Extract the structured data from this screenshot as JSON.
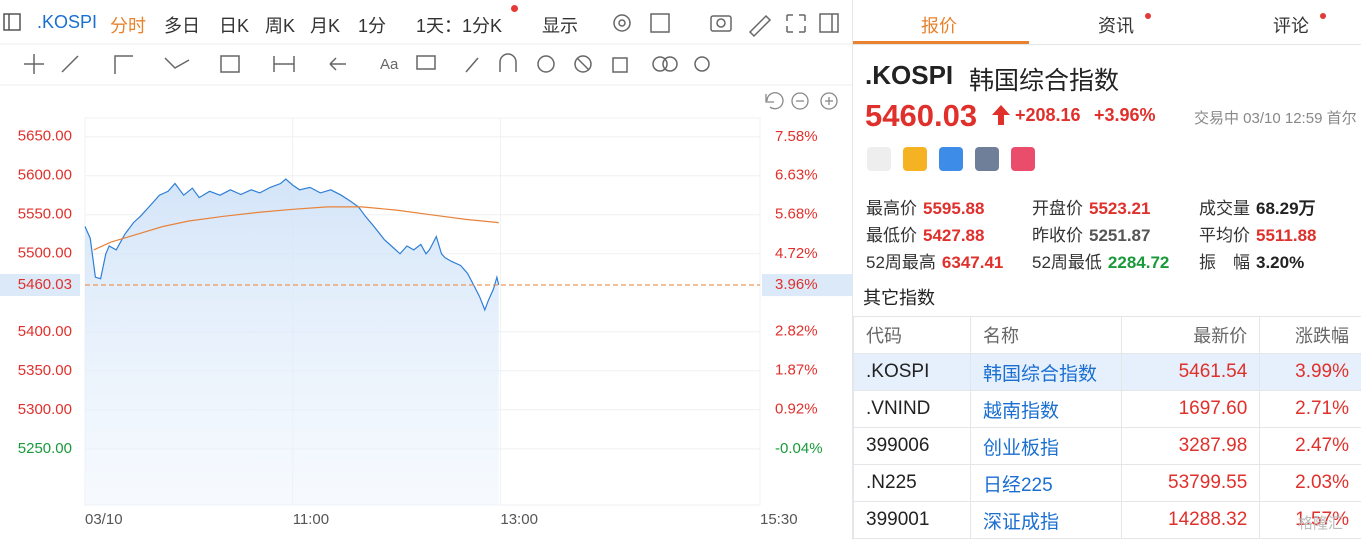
{
  "toolbar": {
    "symbol": ".KOSPI",
    "tabs": [
      "分时",
      "多日",
      "日K",
      "周K",
      "月K"
    ],
    "interval": "1分",
    "period": "1天：1分K",
    "display": "显示"
  },
  "chart_data": {
    "type": "line",
    "series": [
      {
        "color": "#2f7fd6",
        "area": true,
        "x": [
          "09:00",
          "09:03",
          "09:06",
          "09:09",
          "09:12",
          "09:14",
          "09:18",
          "09:23",
          "09:28",
          "09:32",
          "09:37",
          "09:43",
          "09:48",
          "09:52",
          "09:57",
          "10:02",
          "10:06",
          "10:12",
          "10:18",
          "10:24",
          "10:30",
          "10:36",
          "10:41",
          "10:47",
          "10:53",
          "10:56",
          "11:00",
          "11:04",
          "11:10",
          "11:16",
          "11:22",
          "11:28",
          "11:33",
          "11:38",
          "11:42",
          "11:47",
          "11:53",
          "11:58",
          "12:02",
          "12:06",
          "12:10",
          "12:14",
          "12:17",
          "12:19",
          "12:23",
          "12:26",
          "12:28",
          "12:32",
          "12:37",
          "12:41",
          "12:45",
          "12:48",
          "12:51",
          "12:53",
          "12:56",
          "12:58",
          "12:59"
        ],
        "values": [
          5535,
          5520,
          5470,
          5468,
          5500,
          5510,
          5505,
          5525,
          5540,
          5548,
          5560,
          5575,
          5580,
          5590,
          5575,
          5584,
          5572,
          5580,
          5575,
          5582,
          5576,
          5582,
          5578,
          5585,
          5590,
          5595.88,
          5588,
          5582,
          5585,
          5578,
          5582,
          5575,
          5568,
          5560,
          5548,
          5535,
          5518,
          5508,
          5500,
          5510,
          5505,
          5512,
          5500,
          5505,
          5522,
          5500,
          5495,
          5490,
          5485,
          5475,
          5458,
          5445,
          5428,
          5440,
          5455,
          5470,
          5460.03
        ]
      },
      {
        "color": "#e8823a",
        "area": false,
        "x": [
          "09:05",
          "09:15",
          "09:30",
          "09:45",
          "10:00",
          "10:20",
          "10:40",
          "11:00",
          "11:20",
          "11:40",
          "12:00",
          "12:20",
          "12:40",
          "12:59"
        ],
        "values": [
          5505,
          5515,
          5525,
          5535,
          5542,
          5548,
          5553,
          5557,
          5560,
          5560,
          5556,
          5550,
          5544,
          5540
        ]
      }
    ],
    "xlim": [
      "09:00",
      "15:30"
    ],
    "xticks": [
      {
        "value": "09:00",
        "label": "03/10"
      },
      "11:00",
      "13:00",
      "15:30"
    ],
    "ylim": [
      5178,
      5674
    ],
    "yticks": [
      {
        "value": 5650,
        "label": "5650.00"
      },
      {
        "value": 5600,
        "label": "5600.00"
      },
      {
        "value": 5550,
        "label": "5550.00"
      },
      {
        "value": 5500,
        "label": "5500.00"
      },
      {
        "value": 5400,
        "label": "5400.00"
      },
      {
        "value": 5350,
        "label": "5350.00"
      },
      {
        "value": 5300,
        "label": "5300.00"
      },
      {
        "value": 5250,
        "label": "5250.00"
      }
    ],
    "y2lim": [
      -1.41,
      8.04
    ],
    "y2ticks": [
      {
        "value": 7.58,
        "label": "7.58%"
      },
      {
        "value": 6.63,
        "label": "6.63%"
      },
      {
        "value": 5.68,
        "label": "5.68%"
      },
      {
        "value": 4.72,
        "label": "4.72%"
      },
      {
        "value": 2.82,
        "label": "2.82%"
      },
      {
        "value": 1.87,
        "label": "1.87%"
      },
      {
        "value": 0.92,
        "label": "0.92%"
      },
      {
        "value": -0.04,
        "label": "-0.04%"
      }
    ],
    "current": {
      "value": 5460.03,
      "label": "5460.03"
    },
    "current_pct": {
      "value": 3.96,
      "label": "3.96%"
    },
    "grid": true
  },
  "panel": {
    "tabs": [
      "报价",
      "资讯",
      "评论"
    ],
    "symbol": ".KOSPI",
    "name": "韩国综合指数",
    "price": "5460.03",
    "change": "+208.16",
    "change_pct": "+3.96%",
    "status": "交易中 03/10 12:59 首尔",
    "stats": [
      [
        "最高价",
        "5595.88"
      ],
      [
        "开盘价",
        "5523.21"
      ],
      [
        "成交量",
        "68.29万"
      ],
      [
        "最低价",
        "5427.88"
      ],
      [
        "昨收价",
        "5251.87"
      ],
      [
        "平均价",
        "5511.88"
      ],
      [
        "52周最高",
        "6347.41"
      ],
      [
        "52周最低",
        "2284.72"
      ],
      [
        "振　幅",
        "3.20%"
      ]
    ],
    "other_title": "其它指数",
    "columns": [
      "代码",
      "名称",
      "最新价",
      "涨跌幅"
    ],
    "rows": [
      [
        ".KOSPI",
        "韩国综合指数",
        "5461.54",
        "3.99%"
      ],
      [
        ".VNIND",
        "越南指数",
        "1697.60",
        "2.71%"
      ],
      [
        "399006",
        "创业板指",
        "3287.98",
        "2.47%"
      ],
      [
        ".N225",
        "日经225",
        "53799.55",
        "2.03%"
      ],
      [
        "399001",
        "深证成指",
        "14288.32",
        "1.57%"
      ]
    ]
  },
  "watermark": "格隆汇"
}
